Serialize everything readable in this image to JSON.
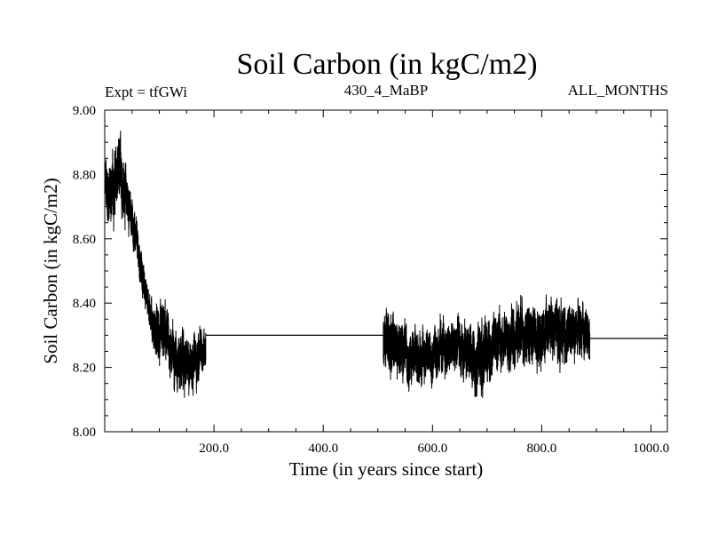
{
  "chart_data": {
    "type": "line",
    "title": "Soil Carbon (in kgC/m2)",
    "left_label": "Expt = tfGWi",
    "center_label": "430_4_MaBP",
    "right_label": "ALL_MONTHS",
    "xlabel": "Time (in years since start)",
    "ylabel": "Soil Carbon (in kgC/m2)",
    "xlim": [
      0,
      1030
    ],
    "ylim": [
      8.0,
      9.0
    ],
    "x_ticks": [
      200,
      400,
      600,
      800,
      1000
    ],
    "x_tick_labels": [
      "200.0",
      "400.0",
      "600.0",
      "800.0",
      "1000.0"
    ],
    "y_ticks": [
      8.0,
      8.2,
      8.4,
      8.6,
      8.8,
      9.0
    ],
    "y_tick_labels": [
      "8.00",
      "8.20",
      "8.40",
      "8.60",
      "8.80",
      "9.00"
    ],
    "series": [
      {
        "name": "soil_carbon_segment_1",
        "style": "noisy",
        "x": [
          0,
          10,
          20,
          30,
          40,
          50,
          60,
          70,
          80,
          90,
          100,
          110,
          120,
          130,
          140,
          150,
          160,
          170,
          180,
          185
        ],
        "values": [
          8.76,
          8.74,
          8.78,
          8.8,
          8.73,
          8.66,
          8.57,
          8.47,
          8.4,
          8.32,
          8.28,
          8.3,
          8.26,
          8.24,
          8.22,
          8.2,
          8.23,
          8.22,
          8.26,
          8.27
        ],
        "amplitude": [
          0.09,
          0.1,
          0.1,
          0.1,
          0.08,
          0.06,
          0.06,
          0.06,
          0.05,
          0.07,
          0.09,
          0.09,
          0.08,
          0.08,
          0.09,
          0.08,
          0.08,
          0.08,
          0.07,
          0.06
        ]
      },
      {
        "name": "soil_carbon_flat_1",
        "style": "line",
        "x": [
          185,
          510
        ],
        "values": [
          8.3,
          8.3
        ]
      },
      {
        "name": "soil_carbon_segment_2",
        "style": "noisy",
        "x": [
          510,
          530,
          550,
          570,
          590,
          610,
          630,
          650,
          670,
          690,
          710,
          730,
          750,
          770,
          790,
          810,
          830,
          850,
          870,
          888
        ],
        "values": [
          8.29,
          8.27,
          8.25,
          8.23,
          8.24,
          8.26,
          8.25,
          8.27,
          8.24,
          8.23,
          8.27,
          8.29,
          8.3,
          8.31,
          8.3,
          8.32,
          8.31,
          8.3,
          8.31,
          8.3
        ],
        "amplitude": [
          0.09,
          0.09,
          0.08,
          0.08,
          0.08,
          0.08,
          0.08,
          0.08,
          0.09,
          0.1,
          0.09,
          0.09,
          0.09,
          0.09,
          0.09,
          0.09,
          0.09,
          0.08,
          0.08,
          0.07
        ]
      },
      {
        "name": "soil_carbon_flat_2",
        "style": "line",
        "x": [
          888,
          1030
        ],
        "values": [
          8.29,
          8.29
        ]
      }
    ]
  }
}
